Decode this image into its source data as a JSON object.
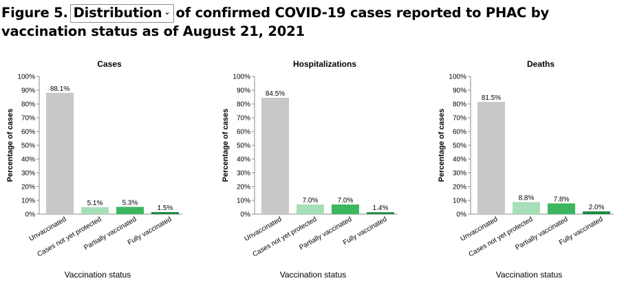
{
  "header": {
    "prefix": "Figure 5.",
    "dropdown_value": "Distribution",
    "suffix": "of confirmed COVID-19 cases reported to PHAC by vaccination status as of August 21, 2021"
  },
  "colors": {
    "Unvaccinated": "#c8c8c8",
    "Cases not yet protected": "#a6dfb8",
    "Partially vaccinated": "#3cb760",
    "Fully vaccinated": "#1f8a46",
    "axis": "#888888"
  },
  "icons": {
    "dropdown": "chevron-down-icon"
  },
  "chart_data": [
    {
      "type": "bar",
      "title": "Cases",
      "xlabel": "Vaccination status",
      "ylabel": "Percentage of cases",
      "categories": [
        "Unvaccinated",
        "Cases not yet protected",
        "Partially vaccinated",
        "Fully vaccinated"
      ],
      "values": [
        88.1,
        5.1,
        5.3,
        1.5
      ],
      "value_labels": [
        "88.1%",
        "5.1%",
        "5.3%",
        "1.5%"
      ],
      "yticks": [
        "0%",
        "10%",
        "20%",
        "30%",
        "40%",
        "50%",
        "60%",
        "70%",
        "80%",
        "90%",
        "100%"
      ],
      "ylim": [
        0,
        100
      ]
    },
    {
      "type": "bar",
      "title": "Hospitalizations",
      "xlabel": "Vaccination status",
      "ylabel": "Percentage of cases",
      "categories": [
        "Unvaccinated",
        "Cases not yet protected",
        "Partially vaccinated",
        "Fully vaccinated"
      ],
      "values": [
        84.5,
        7.0,
        7.0,
        1.4
      ],
      "value_labels": [
        "84.5%",
        "7.0%",
        "7.0%",
        "1.4%"
      ],
      "yticks": [
        "0%",
        "10%",
        "20%",
        "30%",
        "40%",
        "50%",
        "60%",
        "70%",
        "80%",
        "90%",
        "100%"
      ],
      "ylim": [
        0,
        100
      ]
    },
    {
      "type": "bar",
      "title": "Deaths",
      "xlabel": "Vaccination status",
      "ylabel": "Percentage of cases",
      "categories": [
        "Unvaccinated",
        "Cases not yet protected",
        "Partially vaccinated",
        "Fully vaccinated"
      ],
      "values": [
        81.5,
        8.8,
        7.8,
        2.0
      ],
      "value_labels": [
        "81.5%",
        "8.8%",
        "7.8%",
        "2.0%"
      ],
      "yticks": [
        "0%",
        "10%",
        "20%",
        "30%",
        "40%",
        "50%",
        "60%",
        "70%",
        "80%",
        "90%",
        "100%"
      ],
      "ylim": [
        0,
        100
      ]
    }
  ]
}
